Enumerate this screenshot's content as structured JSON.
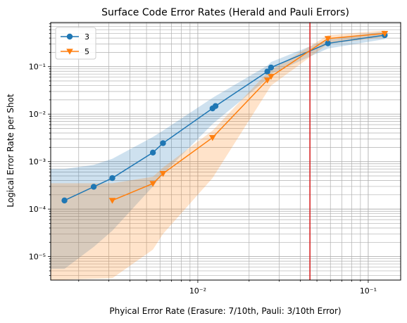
{
  "chart_data": {
    "type": "line",
    "title": "Surface Code Error Rates (Herald and Pauli Errors)",
    "xlabel": "Phyical Error Rate (Erasure: 7/10th, Pauli: 3/10th Error)",
    "ylabel": "Logical Error Rate per Shot",
    "xscale": "log",
    "yscale": "log",
    "xlim": [
      0.00137,
      0.155
    ],
    "ylim": [
      3.2e-06,
      0.85
    ],
    "grid": true,
    "legend_position": "top-left",
    "x_tick_labels": [
      "10⁻²",
      "10⁻¹"
    ],
    "y_tick_labels": [
      "10⁻⁵",
      "10⁻⁴",
      "10⁻³",
      "10⁻²",
      "10⁻¹"
    ],
    "vertical_line": {
      "x": 0.0455,
      "color": "#d62728"
    },
    "series": [
      {
        "name": "3",
        "color": "#1f77b4",
        "marker": "circle",
        "x": [
          0.00165,
          0.00245,
          0.00315,
          0.00545,
          0.00625,
          0.0122,
          0.0127,
          0.0256,
          0.0269,
          0.058,
          0.125
        ],
        "y": [
          0.000152,
          0.000295,
          0.00045,
          0.00155,
          0.00245,
          0.0132,
          0.0148,
          0.079,
          0.096,
          0.31,
          0.46
        ],
        "band_lower": [
          5.5e-06,
          1.6e-05,
          3.5e-05,
          0.0003,
          0.00055,
          0.0062,
          0.007,
          0.055,
          0.07,
          0.24,
          0.38
        ],
        "band_upper": [
          0.0007,
          0.00085,
          0.00115,
          0.0033,
          0.0045,
          0.022,
          0.024,
          0.105,
          0.125,
          0.38,
          0.55
        ]
      },
      {
        "name": "5",
        "color": "#ff7f0e",
        "marker": "triangle-down",
        "x": [
          0.00315,
          0.00545,
          0.00625,
          0.0122,
          0.0256,
          0.0269,
          0.058,
          0.125
        ],
        "y": [
          0.000152,
          0.000345,
          0.00056,
          0.0032,
          0.052,
          0.062,
          0.39,
          0.5
        ],
        "band_lower": [
          3.5e-06,
          1.4e-05,
          3e-05,
          0.00045,
          0.03,
          0.04,
          0.3,
          0.42
        ],
        "band_upper": [
          0.00035,
          0.00048,
          0.00075,
          0.0045,
          0.075,
          0.085,
          0.46,
          0.58
        ]
      }
    ],
    "band_left_extension": {
      "x_start": 0.00137,
      "series_3": {
        "lower": 5.5e-06,
        "upper": 0.0007
      },
      "series_5": {
        "lower": 3.2e-06,
        "upper": 0.00035
      }
    }
  }
}
